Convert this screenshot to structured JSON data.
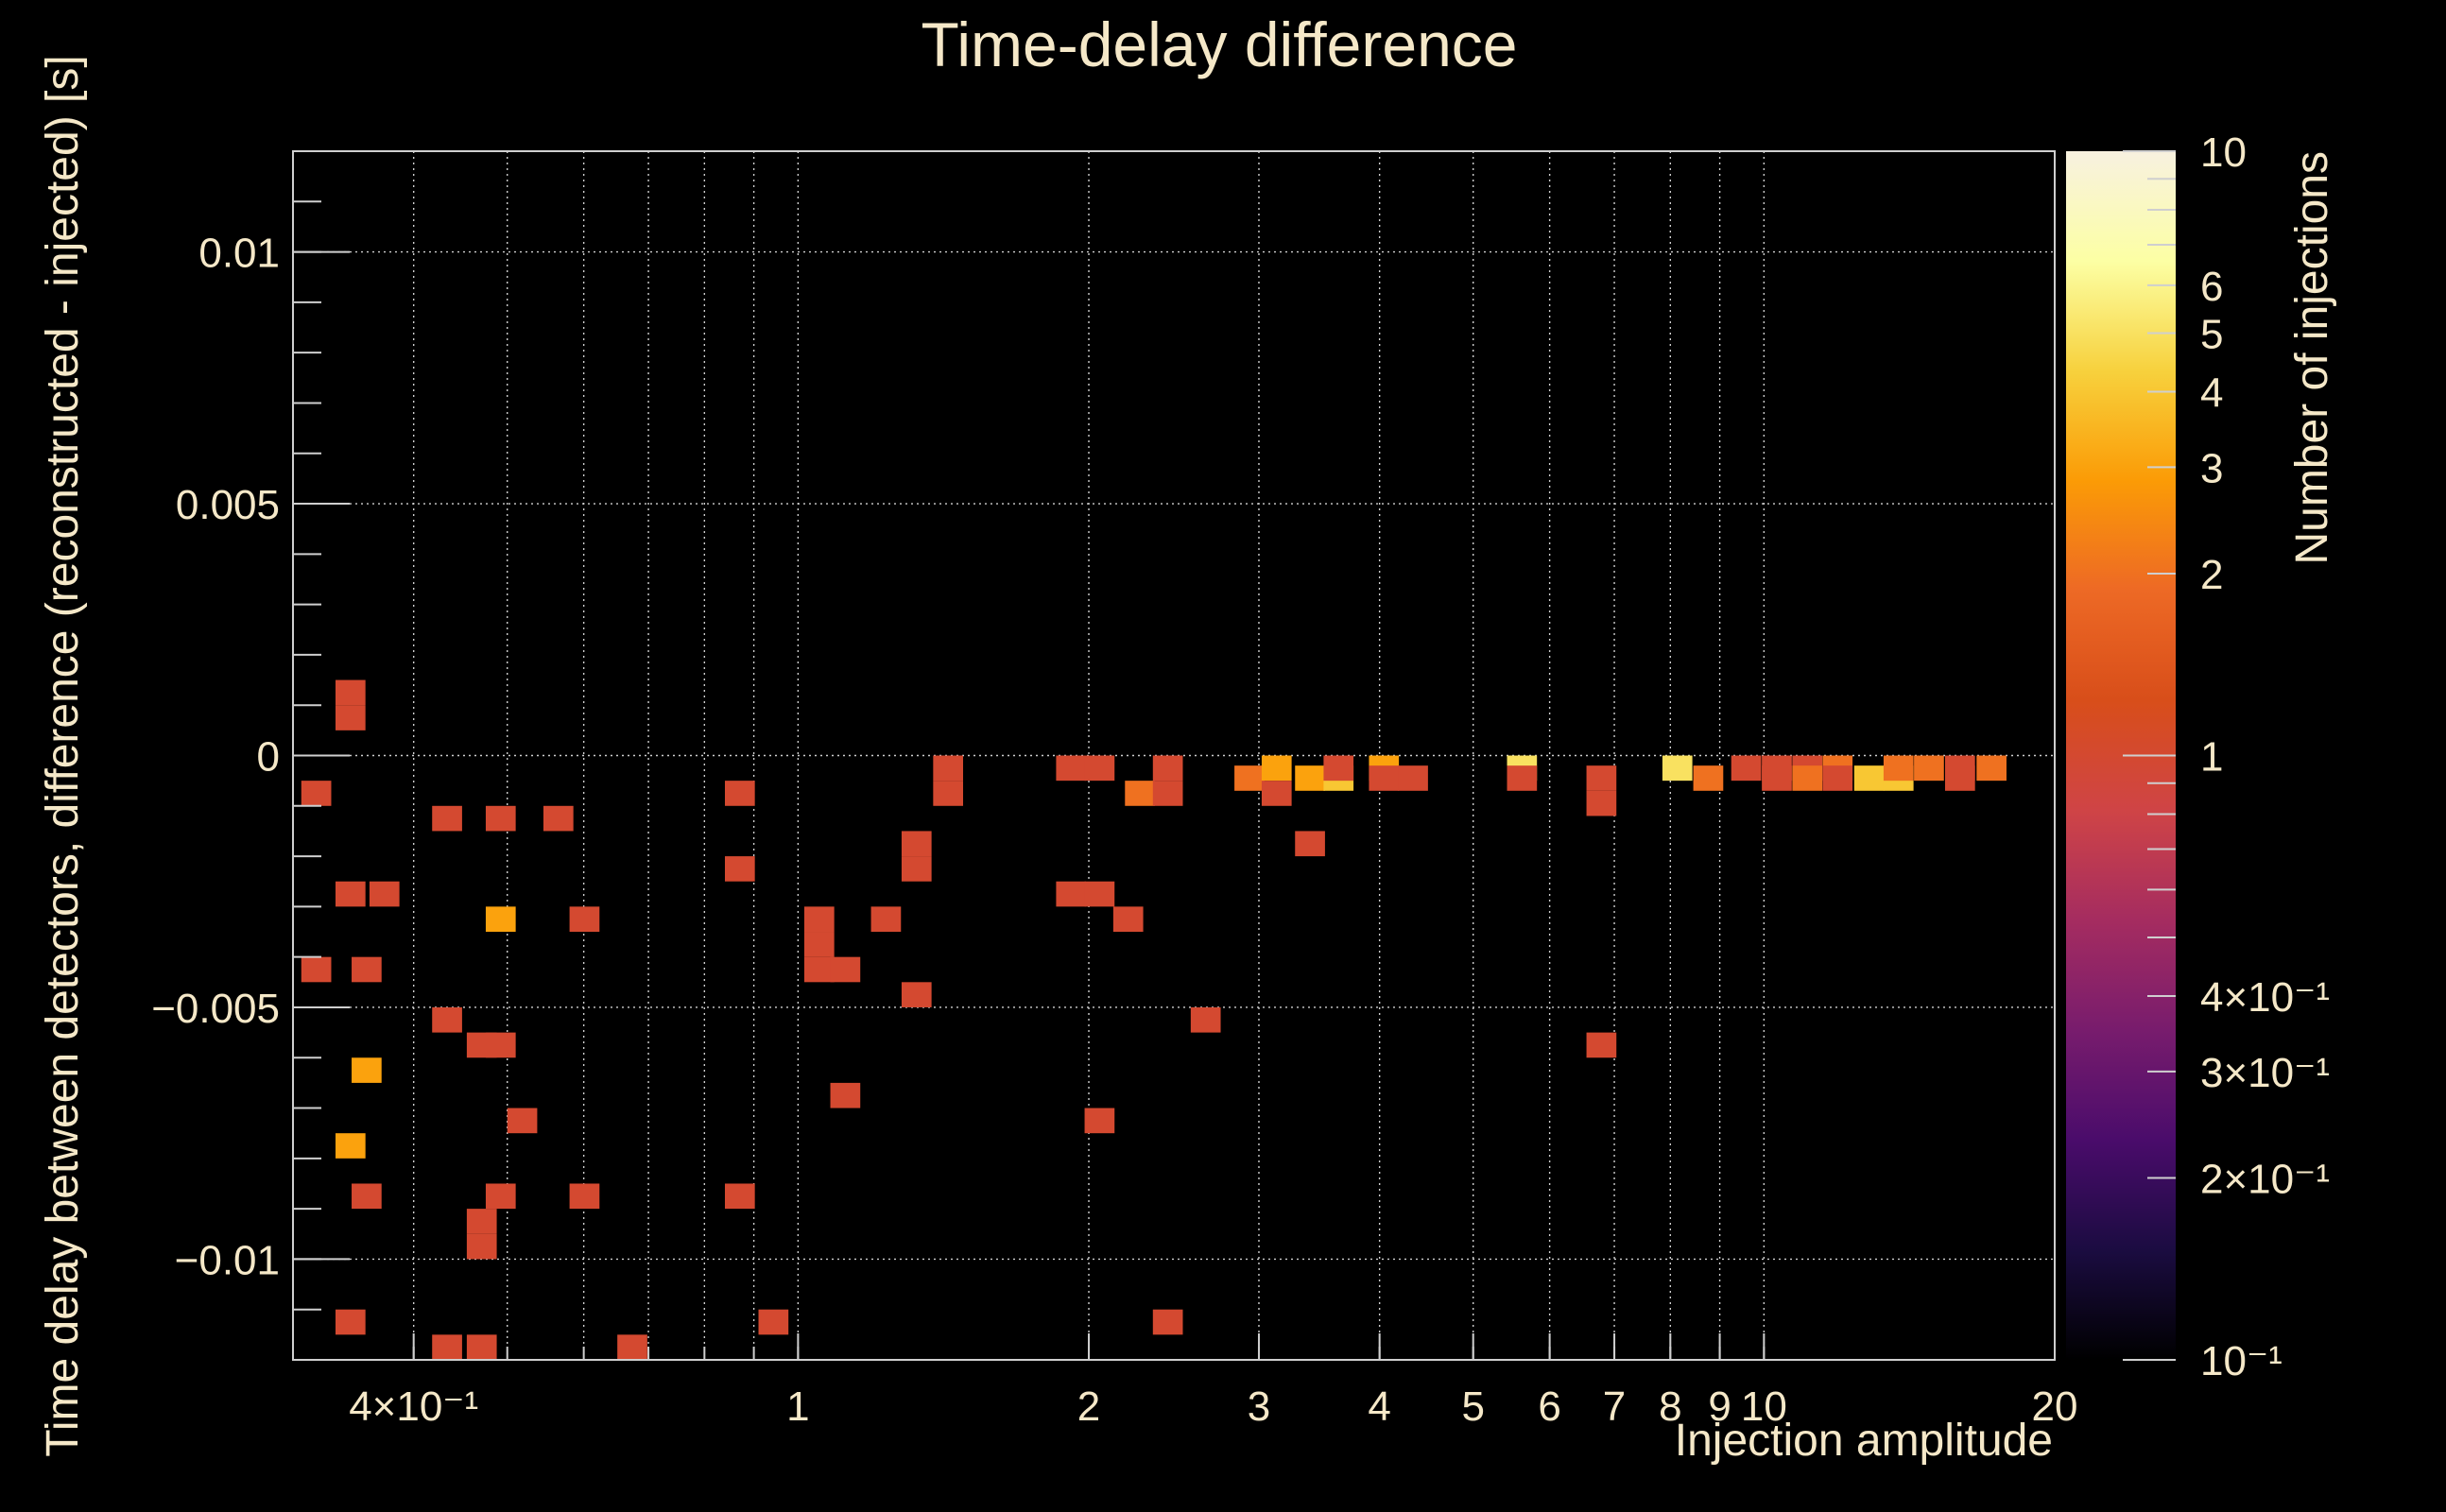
{
  "chart_data": {
    "type": "heatmap",
    "title": "Time-delay difference",
    "xlabel": "Injection amplitude",
    "ylabel": "Time delay between detectors, difference (reconstructed - injected) [s]",
    "zlabel": "Number of injections",
    "x_scale": "log",
    "xlim": [
      0.3,
      20
    ],
    "ylim": [
      -0.012,
      0.012
    ],
    "zlim": [
      0.1,
      10
    ],
    "z_scale": "log",
    "grid": true,
    "x_ticks": [
      {
        "v": 0.4,
        "label": "4×10⁻¹"
      },
      {
        "v": 1,
        "label": "1"
      },
      {
        "v": 2,
        "label": "2"
      },
      {
        "v": 3,
        "label": "3"
      },
      {
        "v": 4,
        "label": "4"
      },
      {
        "v": 5,
        "label": "5"
      },
      {
        "v": 6,
        "label": "6"
      },
      {
        "v": 7,
        "label": "7"
      },
      {
        "v": 8,
        "label": "8"
      },
      {
        "v": 9,
        "label": "9"
      },
      {
        "v": 10,
        "label": "10"
      },
      {
        "v": 20,
        "label": "20"
      }
    ],
    "y_ticks": [
      {
        "v": 0.01,
        "label": "0.01"
      },
      {
        "v": 0.005,
        "label": "0.005"
      },
      {
        "v": 0,
        "label": "0"
      },
      {
        "v": -0.005,
        "label": "−0.005"
      },
      {
        "v": -0.01,
        "label": "−0.01"
      }
    ],
    "z_ticks": [
      {
        "v": 10,
        "label": "10"
      },
      {
        "v": 6,
        "label": "6"
      },
      {
        "v": 5,
        "label": "5"
      },
      {
        "v": 4,
        "label": "4"
      },
      {
        "v": 3,
        "label": "3"
      },
      {
        "v": 2,
        "label": "2"
      },
      {
        "v": 1,
        "label": "1"
      },
      {
        "v": 0.4,
        "label": "4×10⁻¹"
      },
      {
        "v": 0.3,
        "label": "3×10⁻¹"
      },
      {
        "v": 0.2,
        "label": "2×10⁻¹"
      },
      {
        "v": 0.1,
        "label": "10⁻¹"
      }
    ],
    "colormap": [
      "#000000",
      "#1b0c41",
      "#4a0c6b",
      "#781c6d",
      "#a52c60",
      "#cf4446",
      "#d84e1a",
      "#ed6925",
      "#fb9b06",
      "#f7d13d",
      "#fcffa4",
      "#f8f1e0"
    ],
    "cells": [
      {
        "x": 0.306,
        "y": -0.0005,
        "n": 1
      },
      {
        "x": 0.332,
        "y": 0.0015,
        "n": 1
      },
      {
        "x": 0.332,
        "y": 0.001,
        "n": 1
      },
      {
        "x": 0.332,
        "y": -0.0025,
        "n": 1
      },
      {
        "x": 0.36,
        "y": -0.0025,
        "n": 1
      },
      {
        "x": 0.306,
        "y": -0.004,
        "n": 1
      },
      {
        "x": 0.345,
        "y": -0.004,
        "n": 1
      },
      {
        "x": 0.345,
        "y": -0.006,
        "n": 3
      },
      {
        "x": 0.332,
        "y": -0.0075,
        "n": 3
      },
      {
        "x": 0.345,
        "y": -0.0085,
        "n": 1
      },
      {
        "x": 0.332,
        "y": -0.011,
        "n": 1
      },
      {
        "x": 0.418,
        "y": -0.001,
        "n": 1
      },
      {
        "x": 0.418,
        "y": -0.005,
        "n": 1
      },
      {
        "x": 0.475,
        "y": -0.001,
        "n": 1
      },
      {
        "x": 0.475,
        "y": -0.003,
        "n": 3
      },
      {
        "x": 0.454,
        "y": -0.0055,
        "n": 1
      },
      {
        "x": 0.475,
        "y": -0.0055,
        "n": 1
      },
      {
        "x": 0.5,
        "y": -0.007,
        "n": 1
      },
      {
        "x": 0.475,
        "y": -0.0085,
        "n": 1
      },
      {
        "x": 0.454,
        "y": -0.009,
        "n": 1
      },
      {
        "x": 0.454,
        "y": -0.0095,
        "n": 1
      },
      {
        "x": 0.418,
        "y": -0.0115,
        "n": 1
      },
      {
        "x": 0.454,
        "y": -0.0115,
        "n": 1
      },
      {
        "x": 0.545,
        "y": -0.001,
        "n": 1
      },
      {
        "x": 0.58,
        "y": -0.003,
        "n": 1
      },
      {
        "x": 0.58,
        "y": -0.0085,
        "n": 1
      },
      {
        "x": 0.65,
        "y": -0.0115,
        "n": 1
      },
      {
        "x": 0.84,
        "y": -0.0005,
        "n": 1
      },
      {
        "x": 0.84,
        "y": -0.002,
        "n": 1
      },
      {
        "x": 0.84,
        "y": -0.0085,
        "n": 1
      },
      {
        "x": 0.91,
        "y": -0.011,
        "n": 1
      },
      {
        "x": 1.015,
        "y": -0.003,
        "n": 1
      },
      {
        "x": 1.015,
        "y": -0.0035,
        "n": 1
      },
      {
        "x": 1.015,
        "y": -0.004,
        "n": 1
      },
      {
        "x": 1.08,
        "y": -0.004,
        "n": 1
      },
      {
        "x": 1.08,
        "y": -0.0065,
        "n": 1
      },
      {
        "x": 1.19,
        "y": -0.003,
        "n": 1
      },
      {
        "x": 1.28,
        "y": -0.0015,
        "n": 1
      },
      {
        "x": 1.28,
        "y": -0.002,
        "n": 1
      },
      {
        "x": 1.28,
        "y": -0.0045,
        "n": 1
      },
      {
        "x": 1.38,
        "y": 0.0,
        "n": 1
      },
      {
        "x": 1.38,
        "y": -0.0005,
        "n": 1
      },
      {
        "x": 1.85,
        "y": 0.0,
        "n": 1
      },
      {
        "x": 1.98,
        "y": 0.0,
        "n": 1
      },
      {
        "x": 1.85,
        "y": -0.0025,
        "n": 1
      },
      {
        "x": 1.98,
        "y": -0.0025,
        "n": 1
      },
      {
        "x": 1.98,
        "y": -0.007,
        "n": 1
      },
      {
        "x": 2.12,
        "y": -0.003,
        "n": 1
      },
      {
        "x": 2.18,
        "y": -0.0005,
        "n": 2
      },
      {
        "x": 2.33,
        "y": -0.0005,
        "n": 1
      },
      {
        "x": 2.33,
        "y": 0.0,
        "n": 1
      },
      {
        "x": 2.33,
        "y": -0.011,
        "n": 1
      },
      {
        "x": 2.55,
        "y": -0.005,
        "n": 1
      },
      {
        "x": 2.83,
        "y": -0.0002,
        "n": 2
      },
      {
        "x": 3.02,
        "y": 0.0,
        "n": 3
      },
      {
        "x": 3.02,
        "y": -0.0005,
        "n": 1
      },
      {
        "x": 3.27,
        "y": -0.0002,
        "n": 3
      },
      {
        "x": 3.27,
        "y": -0.0015,
        "n": 1
      },
      {
        "x": 3.5,
        "y": -0.0002,
        "n": 4
      },
      {
        "x": 3.5,
        "y": 0.0,
        "n": 1
      },
      {
        "x": 3.9,
        "y": 0.0,
        "n": 3
      },
      {
        "x": 3.9,
        "y": -0.0002,
        "n": 1
      },
      {
        "x": 4.18,
        "y": -0.0002,
        "n": 1
      },
      {
        "x": 5.42,
        "y": 0.0,
        "n": 5
      },
      {
        "x": 5.42,
        "y": -0.0002,
        "n": 1
      },
      {
        "x": 6.55,
        "y": -0.0002,
        "n": 1
      },
      {
        "x": 6.55,
        "y": -0.0007,
        "n": 1
      },
      {
        "x": 6.55,
        "y": -0.0055,
        "n": 1
      },
      {
        "x": 7.85,
        "y": 0.0,
        "n": 5
      },
      {
        "x": 8.45,
        "y": -0.0002,
        "n": 2
      },
      {
        "x": 9.25,
        "y": 0.0,
        "n": 1
      },
      {
        "x": 9.95,
        "y": 0.0,
        "n": 1
      },
      {
        "x": 9.95,
        "y": -0.0002,
        "n": 1
      },
      {
        "x": 10.7,
        "y": 0.0,
        "n": 1
      },
      {
        "x": 10.7,
        "y": -0.0002,
        "n": 2
      },
      {
        "x": 11.5,
        "y": 0.0,
        "n": 2
      },
      {
        "x": 11.5,
        "y": -0.0002,
        "n": 1
      },
      {
        "x": 12.4,
        "y": -0.0002,
        "n": 4
      },
      {
        "x": 13.3,
        "y": -0.0002,
        "n": 4
      },
      {
        "x": 13.3,
        "y": 0.0,
        "n": 2
      },
      {
        "x": 14.3,
        "y": 0.0,
        "n": 2
      },
      {
        "x": 15.4,
        "y": 0.0,
        "n": 1
      },
      {
        "x": 15.4,
        "y": -0.0002,
        "n": 1
      },
      {
        "x": 16.6,
        "y": 0.0,
        "n": 2
      }
    ]
  }
}
